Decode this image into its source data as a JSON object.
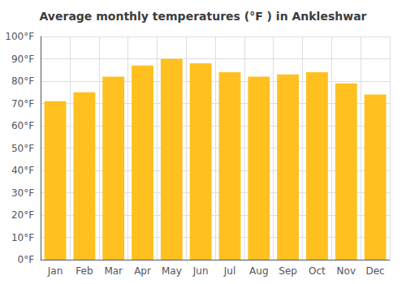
{
  "chart_data": {
    "type": "bar",
    "title": "Average monthly temperatures (°F ) in Ankleshwar",
    "categories": [
      "Jan",
      "Feb",
      "Mar",
      "Apr",
      "May",
      "Jun",
      "Jul",
      "Aug",
      "Sep",
      "Oct",
      "Nov",
      "Dec"
    ],
    "values": [
      71,
      75,
      82,
      87,
      90,
      88,
      84,
      82,
      83,
      84,
      79,
      74
    ],
    "color": "#FFC020",
    "ylim": [
      0,
      100
    ],
    "yticks": [
      {
        "value": 0,
        "label": "0°F"
      },
      {
        "value": 10,
        "label": "10°F"
      },
      {
        "value": 20,
        "label": "20°F"
      },
      {
        "value": 30,
        "label": "30°F"
      },
      {
        "value": 40,
        "label": "40°F"
      },
      {
        "value": 50,
        "label": "50°F"
      },
      {
        "value": 60,
        "label": "60°F"
      },
      {
        "value": 70,
        "label": "70°F"
      },
      {
        "value": 80,
        "label": "80°F"
      },
      {
        "value": 90,
        "label": "90°F"
      },
      {
        "value": 100,
        "label": "100°F"
      }
    ],
    "grid": true
  }
}
